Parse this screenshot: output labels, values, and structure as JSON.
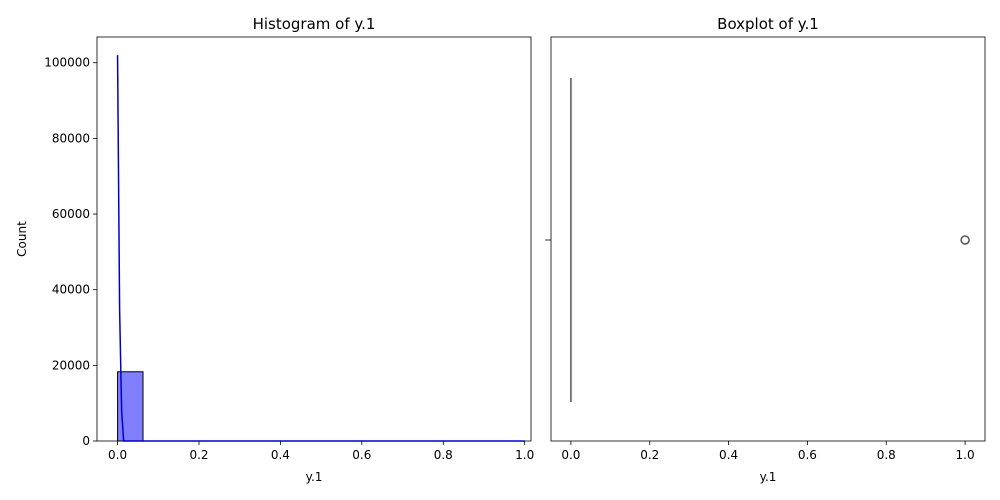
{
  "chart_data": [
    {
      "type": "bar",
      "title": "Histogram of y.1",
      "xlabel": "y.1",
      "ylabel": "Count",
      "xlim": [
        -0.0505,
        1.0155
      ],
      "ylim": [
        0,
        106800
      ],
      "xticks": [
        0.0,
        0.2,
        0.4,
        0.6,
        0.8,
        1.0
      ],
      "xtick_labels": [
        "0.0",
        "0.2",
        "0.4",
        "0.6",
        "0.8",
        "1.0"
      ],
      "yticks": [
        0,
        20000,
        40000,
        60000,
        80000,
        100000
      ],
      "ytick_labels": [
        "0",
        "20000",
        "40000",
        "60000",
        "80000",
        "100000"
      ],
      "bars": [
        {
          "x0": 0.0,
          "x1": 0.0625,
          "count": 18300
        }
      ],
      "bar_color": "#7f7fff",
      "bar_edge": "#000000",
      "kde": {
        "color": "#0000cc",
        "x": [
          0.0,
          0.005,
          0.01,
          0.015,
          1.0
        ],
        "y": [
          102000,
          35000,
          8000,
          0,
          0
        ]
      },
      "grid": false
    },
    {
      "type": "boxplot",
      "title": "Boxplot of y.1",
      "xlabel": "y.1",
      "xlim": [
        -0.0505,
        1.0505
      ],
      "xticks": [
        0.0,
        0.2,
        0.4,
        0.6,
        0.8,
        1.0
      ],
      "xtick_labels": [
        "0.0",
        "0.2",
        "0.4",
        "0.6",
        "0.8",
        "1.0"
      ],
      "box": {
        "q1": 0.0,
        "median": 0.0,
        "q3": 0.0,
        "whisker_low": 0.0,
        "whisker_high": 0.0
      },
      "outliers": [
        1.0
      ],
      "color": "#555555",
      "grid": false
    }
  ]
}
